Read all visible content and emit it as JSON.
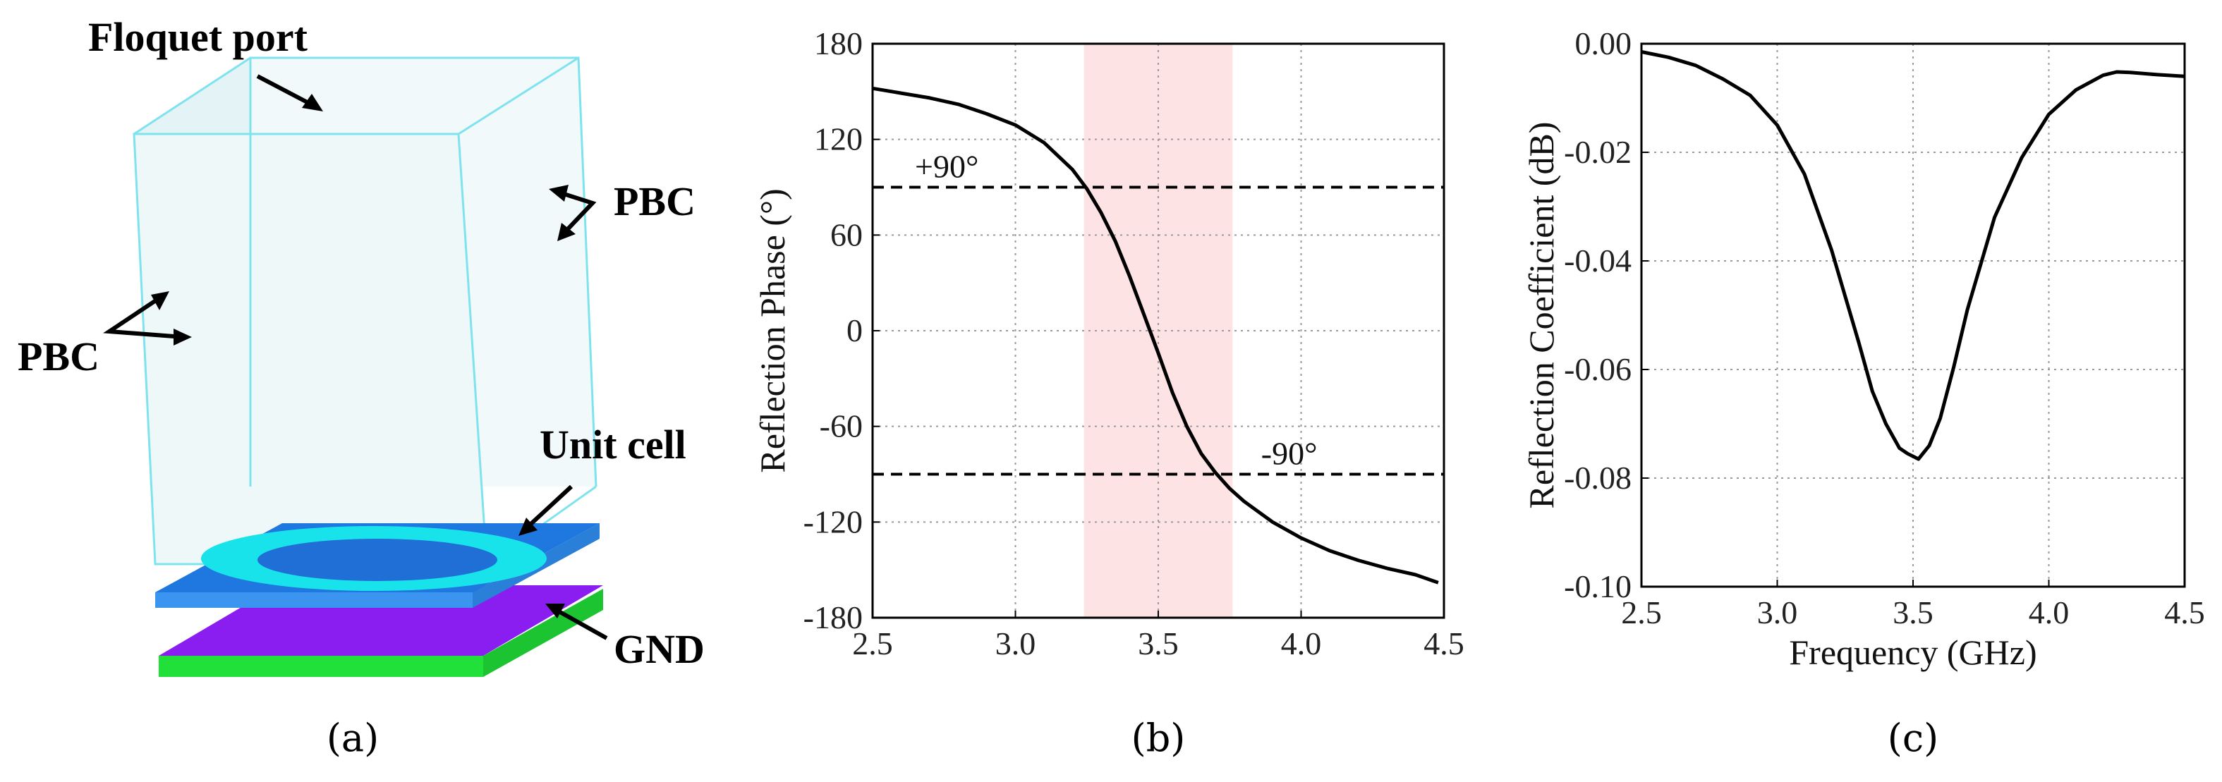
{
  "panel_a": {
    "labels": {
      "floquet": "Floquet port",
      "pbc_right": "PBC",
      "pbc_left": "PBC",
      "unit_cell": "Unit cell",
      "gnd": "GND"
    },
    "caption": "(a)",
    "colors": {
      "box_edge": "#7fe3ee",
      "box_fill": "#eaf6f8",
      "substrate": "#1f77e0",
      "ring": "#19e3ea",
      "ground_top": "#8a1df0",
      "ground_side": "#22e03a"
    }
  },
  "chart_data": [
    {
      "type": "line",
      "caption": "(b)",
      "xlabel": "",
      "ylabel": "Reflection Phase (°)",
      "xlim": [
        2.5,
        4.5
      ],
      "ylim": [
        -180,
        180
      ],
      "xticks": [
        "2.5",
        "3.0",
        "3.5",
        "4.0",
        "4.5"
      ],
      "yticks": [
        "180",
        "120",
        "60",
        "0",
        "-60",
        "-120",
        "-180"
      ],
      "grid": true,
      "series": [
        {
          "x": [
            2.5,
            2.6,
            2.7,
            2.8,
            2.9,
            3.0,
            3.1,
            3.2,
            3.25,
            3.3,
            3.35,
            3.4,
            3.45,
            3.5,
            3.55,
            3.6,
            3.65,
            3.7,
            3.75,
            3.8,
            3.9,
            4.0,
            4.1,
            4.2,
            4.3,
            4.4,
            4.48
          ],
          "y": [
            152,
            149,
            146,
            142,
            136,
            129,
            118,
            101,
            89,
            74,
            56,
            34,
            10,
            -14,
            -39,
            -60,
            -77,
            -89,
            -99,
            -107,
            -120,
            -130,
            -138,
            -144,
            -149,
            -153,
            -158
          ]
        }
      ],
      "annotations": {
        "plus90_label": "+90°",
        "minus90_label": "-90°",
        "plus90_value": 90,
        "minus90_value": -90,
        "band": [
          3.24,
          3.76
        ]
      },
      "colors": {
        "line": "#000000",
        "band": "#fde3e3",
        "grid": "#9a9a9a"
      }
    },
    {
      "type": "line",
      "caption": "(c)",
      "xlabel": "Frequency (GHz)",
      "ylabel": "Reflection Coefficient (dB)",
      "xlim": [
        2.5,
        4.5
      ],
      "ylim": [
        -0.1,
        0.0
      ],
      "xticks": [
        "2.5",
        "3.0",
        "3.5",
        "4.0",
        "4.5"
      ],
      "yticks": [
        "0.00",
        "-0.02",
        "-0.04",
        "-0.06",
        "-0.08",
        "-0.10"
      ],
      "grid": true,
      "series": [
        {
          "x": [
            2.5,
            2.6,
            2.7,
            2.8,
            2.9,
            3.0,
            3.1,
            3.2,
            3.3,
            3.35,
            3.4,
            3.45,
            3.48,
            3.52,
            3.56,
            3.6,
            3.65,
            3.7,
            3.8,
            3.9,
            4.0,
            4.1,
            4.2,
            4.25,
            4.3,
            4.4,
            4.5
          ],
          "y": [
            -0.0015,
            -0.0025,
            -0.004,
            -0.0065,
            -0.0095,
            -0.015,
            -0.024,
            -0.038,
            -0.055,
            -0.064,
            -0.07,
            -0.0745,
            -0.0755,
            -0.0765,
            -0.074,
            -0.069,
            -0.0595,
            -0.049,
            -0.032,
            -0.021,
            -0.013,
            -0.0085,
            -0.0058,
            -0.0052,
            -0.0053,
            -0.0057,
            -0.006
          ]
        }
      ],
      "colors": {
        "line": "#000000",
        "grid": "#9a9a9a"
      }
    }
  ]
}
